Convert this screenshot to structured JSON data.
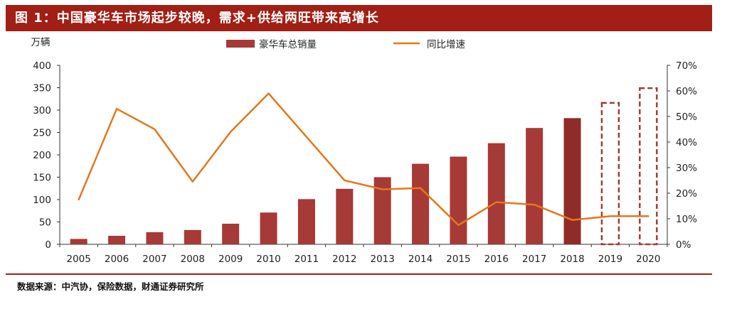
{
  "title": "图 1：中国豪华车市场起步较晚，需求+供给两旺带来高增长",
  "source": "数据来源：中汽协，保险数据，财通证券研究所",
  "colors": {
    "title_bg": "#a11f14",
    "bar": "#a53a36",
    "bar_highlight": "#8f2b28",
    "line": "#e6761d",
    "dashed_box": "#a53a36"
  },
  "chart_data": {
    "type": "bar",
    "categories": [
      "2005",
      "2006",
      "2007",
      "2008",
      "2009",
      "2010",
      "2011",
      "2012",
      "2013",
      "2014",
      "2015",
      "2016",
      "2017",
      "2018",
      "2019",
      "2020"
    ],
    "y_left_label": "万辆",
    "y_left_ticks": [
      "0",
      "50",
      "100",
      "150",
      "200",
      "250",
      "300",
      "350",
      "400"
    ],
    "y_left_lim": [
      0,
      400
    ],
    "y_right_ticks": [
      "0%",
      "10%",
      "20%",
      "30%",
      "40%",
      "50%",
      "60%",
      "70%"
    ],
    "y_right_lim": [
      0,
      70
    ],
    "legend_position": "top",
    "series": [
      {
        "name": "豪华车总销量",
        "type": "bar",
        "axis": "left",
        "values": [
          12,
          19,
          27,
          32,
          46,
          71,
          101,
          124,
          150,
          180,
          196,
          226,
          260,
          282,
          null,
          null
        ]
      },
      {
        "name": "同比增速",
        "type": "line",
        "axis": "right",
        "values": [
          17.5,
          53,
          45,
          24.5,
          44,
          59,
          42,
          25,
          21.5,
          22,
          7.5,
          16.5,
          15.5,
          9.5,
          11,
          11
        ]
      }
    ],
    "projected": [
      {
        "category": "2019",
        "value": 316
      },
      {
        "category": "2020",
        "value": 349
      }
    ]
  }
}
